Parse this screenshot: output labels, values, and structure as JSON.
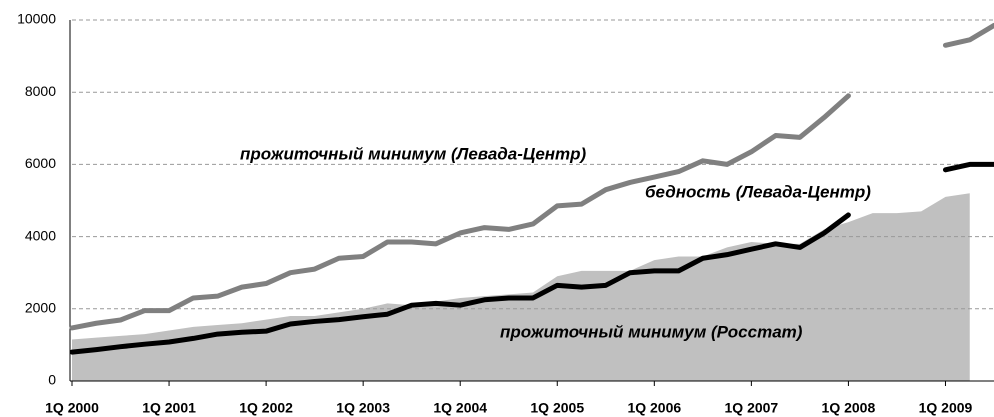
{
  "chart_data": {
    "type": "line",
    "categories": [
      "1Q 2000",
      null,
      null,
      null,
      "1Q 2001",
      null,
      null,
      null,
      "1Q 2002",
      null,
      null,
      null,
      "1Q 2003",
      null,
      null,
      null,
      "1Q 2004",
      null,
      null,
      null,
      "1Q 2005",
      null,
      null,
      null,
      "1Q 2006",
      null,
      null,
      null,
      "1Q 2007",
      null,
      null,
      null,
      "1Q 2008",
      null,
      null,
      null,
      "1Q 2009",
      null,
      null
    ],
    "series": [
      {
        "name": "прожиточный минимум (Росстат)",
        "kind": "area",
        "color": "#c0c0c0",
        "values": [
          1150,
          1200,
          1250,
          1300,
          1400,
          1500,
          1550,
          1600,
          1700,
          1800,
          1800,
          1900,
          2000,
          2150,
          2100,
          2200,
          2300,
          2350,
          2400,
          2450,
          2900,
          3050,
          3050,
          3050,
          3350,
          3450,
          3450,
          3700,
          3850,
          3800,
          3800,
          4200,
          4400,
          4650,
          4650,
          4700,
          5100,
          5200,
          null
        ]
      },
      {
        "name": "прожиточный минимум (Левада-Центр)",
        "kind": "line",
        "color": "#808080",
        "values": [
          1470,
          1600,
          1690,
          1950,
          1950,
          2300,
          2350,
          2600,
          2700,
          3000,
          3100,
          3400,
          3450,
          3850,
          3850,
          3800,
          4100,
          4250,
          4200,
          4350,
          4850,
          4900,
          5300,
          5500,
          5650,
          5800,
          6100,
          6000,
          6350,
          6800,
          6750,
          7300,
          7900,
          null,
          null,
          null,
          9300,
          9450,
          9850
        ]
      },
      {
        "name": "бедность (Левада-Центр)",
        "kind": "line",
        "color": "#000000",
        "values": [
          800,
          870,
          950,
          1020,
          1080,
          1180,
          1300,
          1350,
          1380,
          1580,
          1650,
          1700,
          1780,
          1850,
          2100,
          2150,
          2100,
          2250,
          2300,
          2300,
          2650,
          2600,
          2650,
          3000,
          3050,
          3050,
          3400,
          3500,
          3650,
          3800,
          3700,
          4100,
          4600,
          null,
          null,
          null,
          5850,
          6000,
          6000
        ]
      }
    ],
    "ylim": [
      0,
      10000
    ],
    "yticks": [
      0,
      2000,
      4000,
      6000,
      8000,
      10000
    ],
    "grid": true
  }
}
